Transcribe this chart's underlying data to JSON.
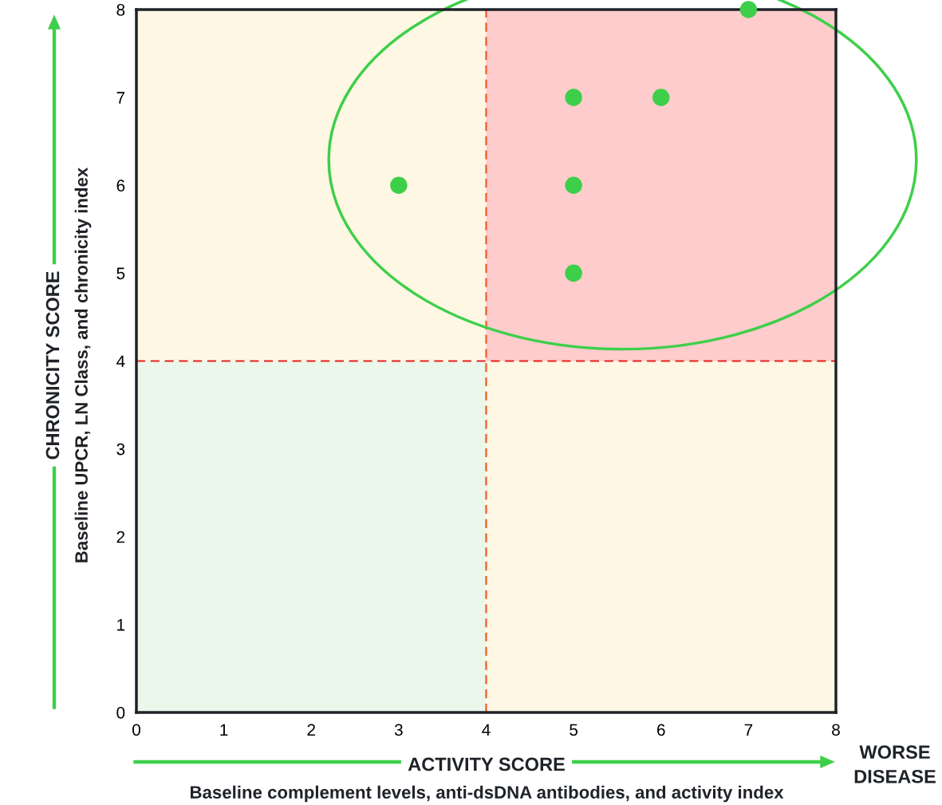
{
  "chart_data": {
    "type": "scatter",
    "xlabel": "ACTIVITY SCORE",
    "ylabel": "CHRONICITY SCORE",
    "annotations": [
      "Baseline complement levels, anti-dsDNA antibodies, and activity index",
      "Baseline UPCR, LN Class, and chronicity index",
      "WORSE\nDISEASE"
    ],
    "series": [
      {
        "color": "#3ecf4a",
        "x": [
          3,
          5,
          6,
          5,
          5,
          7
        ],
        "values": [
          6,
          7,
          7,
          6,
          5,
          8
        ]
      }
    ],
    "marker": "circle",
    "xlim": [
      0,
      8
    ],
    "ylim": [
      0,
      8
    ],
    "xticks": [
      0,
      1,
      2,
      3,
      4,
      5,
      6,
      7,
      8
    ],
    "yticks": [
      0,
      1,
      2,
      3,
      4,
      5,
      6,
      7,
      8
    ],
    "grid": false,
    "ref_lines": [
      {
        "axis": "x",
        "value": 4,
        "color": "#f05a28",
        "line_style": "dashed"
      },
      {
        "axis": "y",
        "value": 4,
        "color": "#e8201c",
        "line_style": "dashed"
      }
    ]
  }
}
